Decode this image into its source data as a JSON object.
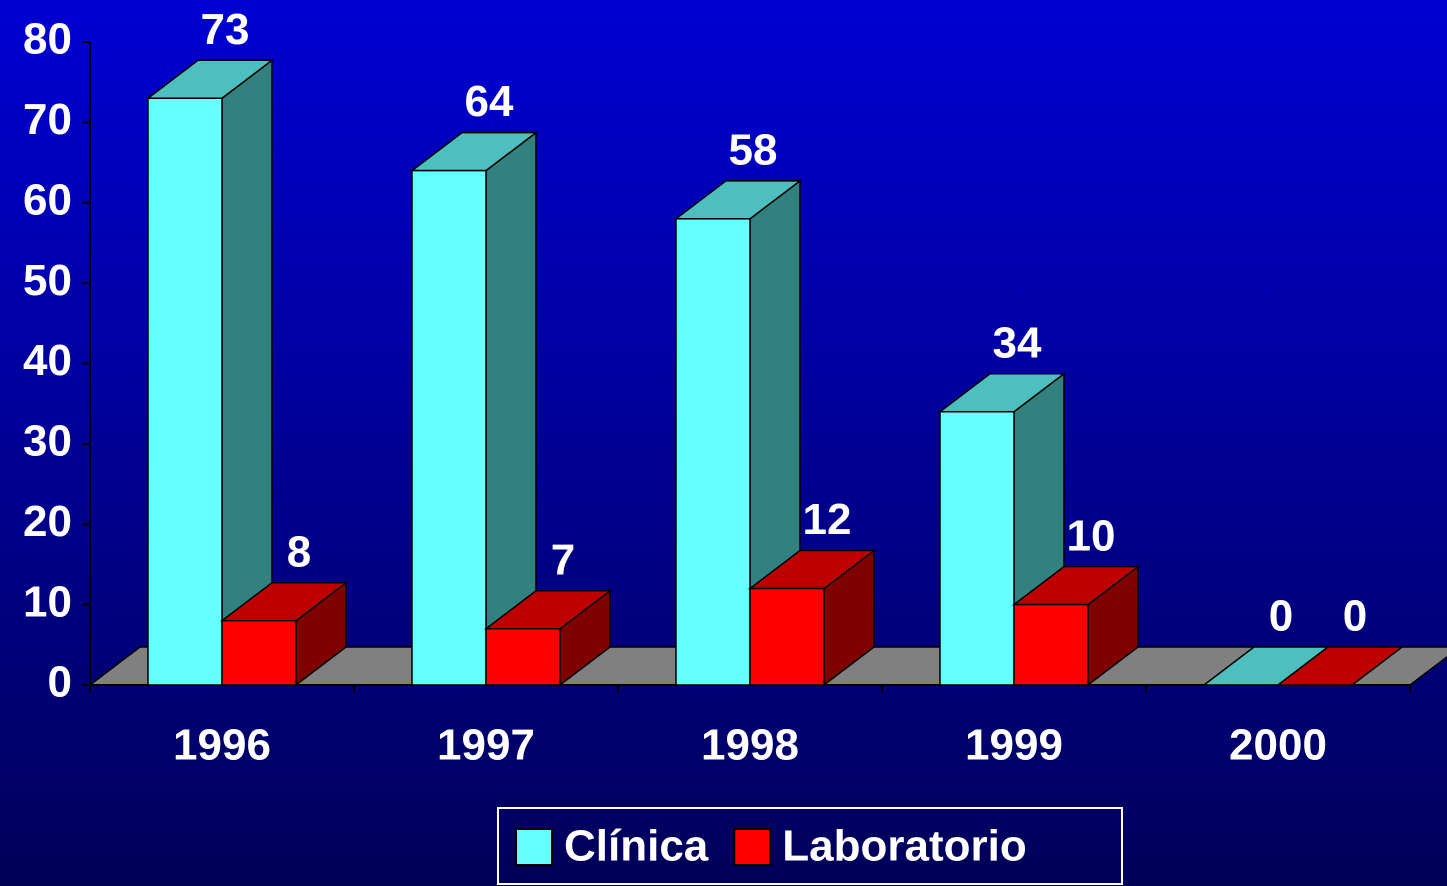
{
  "chart_data": {
    "type": "bar3d",
    "categories": [
      "1996",
      "1997",
      "1998",
      "1999",
      "2000"
    ],
    "series": [
      {
        "name": "Clínica",
        "color": "#66ffff",
        "values": [
          73,
          64,
          58,
          34,
          0
        ]
      },
      {
        "name": "Laboratorio",
        "color": "#ff0000",
        "values": [
          8,
          7,
          12,
          10,
          0
        ]
      }
    ],
    "ylim": [
      0,
      80
    ],
    "yticks": [
      0,
      10,
      20,
      30,
      40,
      50,
      60,
      70,
      80
    ],
    "legend": "bottom"
  }
}
